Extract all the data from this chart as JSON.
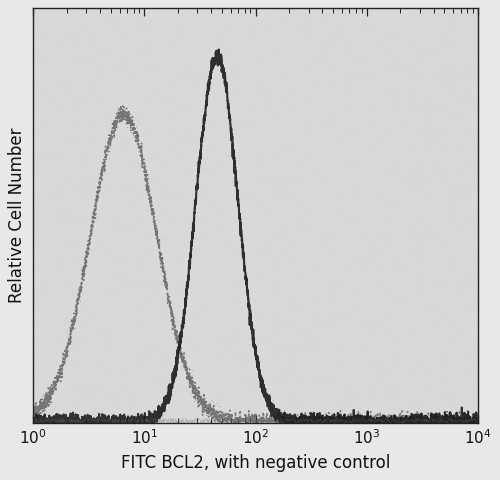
{
  "title": "",
  "xlabel": "FITC BCL2, with negative control",
  "ylabel": "Relative Cell Number",
  "xlim": [
    1,
    10000
  ],
  "ylim": [
    0,
    1.08
  ],
  "background_color": "#e8e8e8",
  "plot_bg_color": "#d8d8d8",
  "neg_control": {
    "peak": 6.5,
    "sigma": 0.3,
    "amplitude": 0.8,
    "color": "#555555",
    "linewidth": 1.2
  },
  "bcl2": {
    "peak": 45,
    "sigma": 0.19,
    "amplitude": 0.95,
    "color": "#111111",
    "linewidth": 1.5
  },
  "noise_scale": 0.018,
  "baseline": 0.018,
  "figsize": [
    5.0,
    4.8
  ],
  "dpi": 100
}
